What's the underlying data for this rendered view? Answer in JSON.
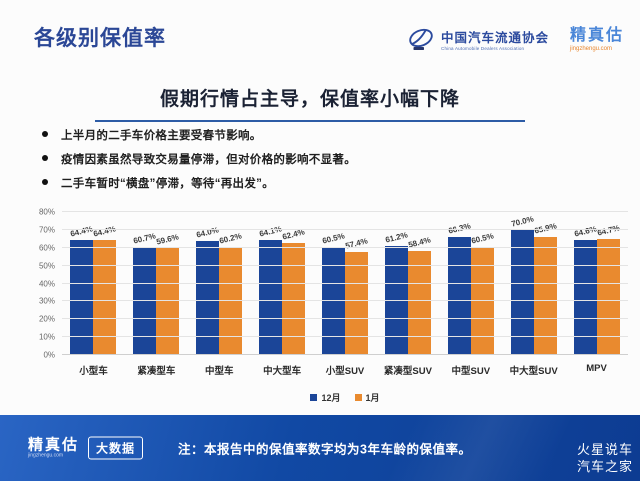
{
  "header": {
    "title": "各级别保值率",
    "cada": {
      "name": "中国汽车流通协会",
      "subtitle": "China Automobile Dealers Association"
    },
    "jingzhengu": {
      "name": "精真估",
      "domain": "jingzhengu.com"
    }
  },
  "banner": {
    "headline": "假期行情占主导，保值率小幅下降"
  },
  "bullets": [
    "上半月的二手车价格主要受春节影响。",
    "疫情因素虽然导致交易量停滞，但对价格的影响不显著。",
    "二手车暂时“横盘”停滞，等待“再出发”。"
  ],
  "chart_data": {
    "type": "bar",
    "categories": [
      "小型车",
      "紧凑型车",
      "中型车",
      "中大型车",
      "小型SUV",
      "紧凑型SUV",
      "中型SUV",
      "中大型SUV",
      "MPV"
    ],
    "series": [
      {
        "name": "12月",
        "color": "#1b4598",
        "values": [
          64.4,
          60.7,
          64.0,
          64.1,
          60.5,
          61.2,
          66.3,
          70.0,
          64.6
        ]
      },
      {
        "name": "1月",
        "color": "#e98a2f",
        "values": [
          64.4,
          59.6,
          60.2,
          62.4,
          57.4,
          58.4,
          60.5,
          65.9,
          64.7
        ]
      }
    ],
    "title": "",
    "xlabel": "",
    "ylabel": "",
    "ylim": [
      0,
      80
    ],
    "ytick_step": 10,
    "value_suffix": "%",
    "grid": true,
    "legend_position": "bottom"
  },
  "footer": {
    "brand": "精真估",
    "brand_domain": "jingzhengu.com",
    "badge": "大数据",
    "note": "注：本报告中的保值率数字均为3年车龄的保值率。",
    "watermark_line1": "火星说车",
    "watermark_line2": "汽车之家"
  },
  "colors": {
    "title_blue": "#2b4796",
    "underline_blue": "#2d5ca6",
    "bar_december": "#1b4598",
    "bar_january": "#e98a2f",
    "footer_blue": "#0d3c92"
  }
}
